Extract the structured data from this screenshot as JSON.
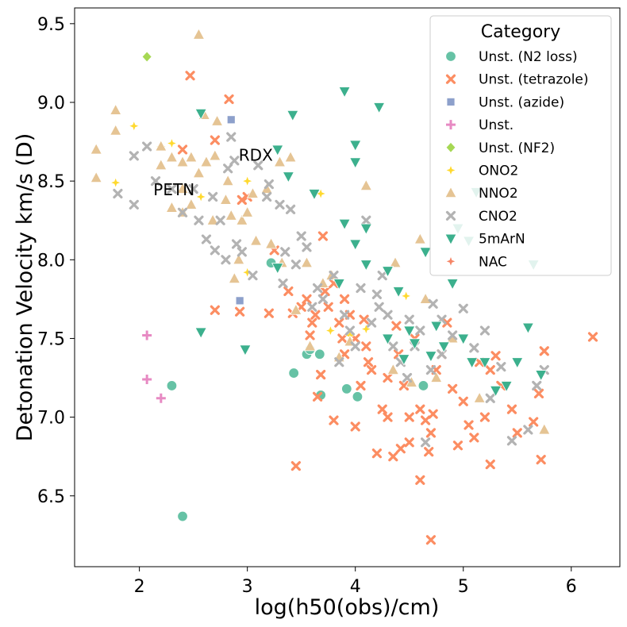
{
  "chart_data": {
    "type": "scatter",
    "title": "",
    "xlabel": "log(h50(obs)/cm)",
    "ylabel": "Detonation Velocity km/s (D)",
    "xlim": [
      1.4,
      6.45
    ],
    "ylim": [
      6.05,
      9.6
    ],
    "xticks": [
      "2",
      "3",
      "4",
      "5",
      "6"
    ],
    "xtick_values": [
      2,
      3,
      4,
      5,
      6
    ],
    "yticks": [
      "6.5",
      "7.0",
      "7.5",
      "8.0",
      "8.5",
      "9.0",
      "9.5"
    ],
    "ytick_values": [
      6.5,
      7.0,
      7.5,
      8.0,
      8.5,
      9.0,
      9.5
    ],
    "grid": false,
    "legend_title": "Category",
    "legend_position": "top-right",
    "annotations": [
      {
        "text": "RDX",
        "x": 2.92,
        "y": 8.63
      },
      {
        "text": "PETN",
        "x": 2.13,
        "y": 8.41
      }
    ],
    "series": [
      {
        "name": "Unst. (N2 loss)",
        "color": "#66c2a5",
        "marker": "circle",
        "points": [
          [
            2.3,
            7.2
          ],
          [
            2.4,
            6.37
          ],
          [
            3.22,
            7.98
          ],
          [
            3.43,
            7.28
          ],
          [
            3.55,
            7.4
          ],
          [
            3.58,
            7.43
          ],
          [
            3.67,
            7.4
          ],
          [
            3.68,
            7.14
          ],
          [
            3.92,
            7.18
          ],
          [
            4.02,
            7.13
          ],
          [
            4.63,
            7.2
          ]
        ]
      },
      {
        "name": "Unst. (tetrazole)",
        "color": "#fc8d62",
        "marker": "x",
        "points": [
          [
            2.47,
            9.17
          ],
          [
            2.83,
            9.02
          ],
          [
            2.4,
            8.7
          ],
          [
            2.7,
            8.76
          ],
          [
            2.95,
            8.38
          ],
          [
            3.0,
            8.4
          ],
          [
            3.25,
            8.06
          ],
          [
            3.38,
            7.8
          ],
          [
            3.45,
            6.69
          ],
          [
            3.42,
            7.66
          ],
          [
            3.5,
            7.7
          ],
          [
            3.55,
            7.75
          ],
          [
            3.6,
            7.6
          ],
          [
            3.63,
            7.65
          ],
          [
            3.68,
            7.27
          ],
          [
            3.72,
            7.8
          ],
          [
            3.75,
            7.7
          ],
          [
            3.8,
            7.85
          ],
          [
            3.85,
            7.6
          ],
          [
            3.88,
            7.5
          ],
          [
            3.9,
            7.4
          ],
          [
            3.95,
            7.65
          ],
          [
            4.0,
            7.5
          ],
          [
            4.05,
            7.2
          ],
          [
            4.1,
            7.45
          ],
          [
            4.15,
            7.3
          ],
          [
            4.2,
            6.77
          ],
          [
            4.25,
            7.05
          ],
          [
            4.3,
            7.25
          ],
          [
            4.35,
            6.75
          ],
          [
            4.4,
            7.4
          ],
          [
            4.45,
            7.2
          ],
          [
            4.5,
            7.0
          ],
          [
            4.55,
            7.5
          ],
          [
            4.6,
            7.05
          ],
          [
            4.65,
            6.98
          ],
          [
            4.7,
            6.9
          ],
          [
            4.7,
            6.22
          ],
          [
            4.75,
            7.3
          ],
          [
            4.8,
            7.4
          ],
          [
            4.85,
            7.6
          ],
          [
            4.9,
            7.18
          ],
          [
            4.95,
            6.82
          ],
          [
            5.05,
            6.95
          ],
          [
            5.1,
            6.87
          ],
          [
            5.15,
            7.35
          ],
          [
            5.2,
            7.0
          ],
          [
            5.25,
            6.7
          ],
          [
            5.3,
            7.39
          ],
          [
            5.35,
            7.2
          ],
          [
            5.45,
            7.05
          ],
          [
            5.5,
            6.9
          ],
          [
            5.65,
            6.97
          ],
          [
            5.72,
            6.73
          ],
          [
            5.75,
            7.42
          ],
          [
            6.2,
            7.51
          ],
          [
            2.7,
            7.68
          ],
          [
            2.93,
            7.67
          ],
          [
            3.2,
            7.66
          ],
          [
            3.65,
            7.13
          ],
          [
            3.7,
            8.15
          ],
          [
            3.9,
            7.75
          ],
          [
            4.0,
            6.94
          ],
          [
            4.08,
            7.62
          ],
          [
            4.3,
            7.0
          ],
          [
            4.42,
            6.8
          ],
          [
            4.5,
            6.84
          ],
          [
            4.6,
            6.6
          ],
          [
            4.68,
            6.78
          ],
          [
            4.72,
            7.02
          ],
          [
            5.0,
            7.1
          ],
          [
            5.25,
            7.3
          ],
          [
            5.7,
            7.15
          ],
          [
            3.58,
            7.52
          ],
          [
            3.8,
            6.98
          ],
          [
            4.12,
            7.35
          ],
          [
            4.38,
            7.58
          ]
        ]
      },
      {
        "name": "Unst. (azide)",
        "color": "#8da0cb",
        "marker": "square",
        "points": [
          [
            2.85,
            8.89
          ],
          [
            2.93,
            7.74
          ]
        ]
      },
      {
        "name": "Unst.",
        "color": "#e78ac3",
        "marker": "plus",
        "points": [
          [
            2.07,
            7.52
          ],
          [
            2.07,
            7.24
          ],
          [
            2.2,
            7.12
          ]
        ]
      },
      {
        "name": "Unst. (NF2)",
        "color": "#a6d854",
        "marker": "diamond",
        "points": [
          [
            2.07,
            9.29
          ]
        ]
      },
      {
        "name": "ONO2",
        "color": "#ffd92f",
        "marker": "star",
        "points": [
          [
            1.78,
            8.49
          ],
          [
            1.95,
            8.85
          ],
          [
            2.2,
            8.72
          ],
          [
            2.3,
            8.74
          ],
          [
            2.57,
            8.4
          ],
          [
            3.0,
            8.5
          ],
          [
            3.0,
            7.92
          ],
          [
            3.68,
            8.42
          ],
          [
            3.77,
            7.55
          ],
          [
            3.95,
            7.52
          ],
          [
            4.1,
            7.56
          ],
          [
            4.47,
            7.77
          ]
        ]
      },
      {
        "name": "NNO2",
        "color": "#e5c494",
        "marker": "triangle",
        "points": [
          [
            1.6,
            8.7
          ],
          [
            1.6,
            8.52
          ],
          [
            1.78,
            8.95
          ],
          [
            1.78,
            8.82
          ],
          [
            2.2,
            8.72
          ],
          [
            2.2,
            8.6
          ],
          [
            2.3,
            8.33
          ],
          [
            2.3,
            8.65
          ],
          [
            2.4,
            8.45
          ],
          [
            2.4,
            8.3
          ],
          [
            2.4,
            8.62
          ],
          [
            2.48,
            8.65
          ],
          [
            2.48,
            8.35
          ],
          [
            2.55,
            9.43
          ],
          [
            2.55,
            8.55
          ],
          [
            2.6,
            8.92
          ],
          [
            2.62,
            8.62
          ],
          [
            2.68,
            8.25
          ],
          [
            2.7,
            8.66
          ],
          [
            2.72,
            8.88
          ],
          [
            2.8,
            8.38
          ],
          [
            2.82,
            8.5
          ],
          [
            2.85,
            8.28
          ],
          [
            2.88,
            7.88
          ],
          [
            2.92,
            8.0
          ],
          [
            2.95,
            8.25
          ],
          [
            3.0,
            8.3
          ],
          [
            3.05,
            8.42
          ],
          [
            3.08,
            8.12
          ],
          [
            3.18,
            8.45
          ],
          [
            3.22,
            8.1
          ],
          [
            3.3,
            8.62
          ],
          [
            3.32,
            7.98
          ],
          [
            3.4,
            8.65
          ],
          [
            3.45,
            7.68
          ],
          [
            3.55,
            7.98
          ],
          [
            3.58,
            7.45
          ],
          [
            3.7,
            7.85
          ],
          [
            3.78,
            7.9
          ],
          [
            3.85,
            7.38
          ],
          [
            3.95,
            7.48
          ],
          [
            4.1,
            8.47
          ],
          [
            4.35,
            7.3
          ],
          [
            4.37,
            7.98
          ],
          [
            4.52,
            7.22
          ],
          [
            4.6,
            8.13
          ],
          [
            4.65,
            7.75
          ],
          [
            4.75,
            7.25
          ],
          [
            5.15,
            7.12
          ],
          [
            5.75,
            6.92
          ],
          [
            4.9,
            7.5
          ]
        ]
      },
      {
        "name": "CNO2",
        "color": "#b3b3b3",
        "marker": "x",
        "points": [
          [
            1.8,
            8.42
          ],
          [
            1.95,
            8.66
          ],
          [
            1.95,
            8.35
          ],
          [
            2.07,
            8.72
          ],
          [
            2.15,
            8.5
          ],
          [
            2.3,
            8.45
          ],
          [
            2.4,
            8.3
          ],
          [
            2.5,
            8.45
          ],
          [
            2.55,
            8.25
          ],
          [
            2.62,
            8.13
          ],
          [
            2.68,
            8.4
          ],
          [
            2.7,
            8.06
          ],
          [
            2.75,
            8.25
          ],
          [
            2.8,
            8.0
          ],
          [
            2.82,
            8.58
          ],
          [
            2.88,
            8.63
          ],
          [
            2.9,
            8.1
          ],
          [
            2.95,
            8.05
          ],
          [
            3.05,
            7.9
          ],
          [
            3.1,
            8.6
          ],
          [
            3.18,
            8.4
          ],
          [
            3.2,
            8.48
          ],
          [
            3.3,
            8.35
          ],
          [
            3.35,
            8.05
          ],
          [
            3.4,
            8.32
          ],
          [
            3.45,
            7.97
          ],
          [
            3.5,
            8.15
          ],
          [
            3.55,
            8.08
          ],
          [
            3.6,
            7.7
          ],
          [
            3.65,
            7.82
          ],
          [
            3.7,
            7.75
          ],
          [
            3.8,
            7.9
          ],
          [
            3.9,
            7.65
          ],
          [
            3.95,
            7.55
          ],
          [
            4.0,
            7.45
          ],
          [
            4.05,
            7.82
          ],
          [
            4.1,
            8.25
          ],
          [
            4.15,
            7.6
          ],
          [
            4.22,
            7.7
          ],
          [
            4.25,
            7.9
          ],
          [
            4.3,
            7.65
          ],
          [
            4.35,
            7.45
          ],
          [
            4.42,
            7.35
          ],
          [
            4.48,
            7.25
          ],
          [
            4.55,
            7.45
          ],
          [
            4.6,
            7.55
          ],
          [
            4.65,
            6.84
          ],
          [
            4.7,
            7.3
          ],
          [
            4.72,
            7.72
          ],
          [
            4.8,
            7.62
          ],
          [
            4.9,
            7.52
          ],
          [
            5.0,
            7.69
          ],
          [
            5.1,
            7.44
          ],
          [
            5.2,
            7.55
          ],
          [
            5.25,
            7.12
          ],
          [
            5.35,
            7.32
          ],
          [
            5.45,
            6.85
          ],
          [
            5.6,
            6.92
          ],
          [
            5.68,
            7.2
          ],
          [
            5.75,
            7.3
          ],
          [
            2.85,
            8.78
          ],
          [
            3.33,
            7.85
          ],
          [
            3.85,
            7.35
          ],
          [
            4.2,
            7.78
          ],
          [
            4.5,
            7.62
          ],
          [
            4.8,
            7.4
          ]
        ]
      },
      {
        "name": "5mArN",
        "color": "#3cb08d",
        "marker": "triangle-down",
        "points": [
          [
            2.57,
            8.93
          ],
          [
            2.57,
            7.54
          ],
          [
            2.98,
            7.43
          ],
          [
            3.28,
            8.7
          ],
          [
            3.38,
            8.53
          ],
          [
            3.42,
            8.92
          ],
          [
            3.62,
            8.42
          ],
          [
            3.85,
            7.85
          ],
          [
            3.9,
            9.07
          ],
          [
            3.9,
            8.23
          ],
          [
            4.0,
            8.73
          ],
          [
            4.0,
            8.62
          ],
          [
            4.0,
            8.1
          ],
          [
            4.1,
            8.2
          ],
          [
            4.1,
            7.97
          ],
          [
            4.22,
            8.97
          ],
          [
            4.3,
            7.93
          ],
          [
            4.4,
            7.8
          ],
          [
            4.45,
            7.37
          ],
          [
            4.5,
            7.55
          ],
          [
            4.55,
            7.47
          ],
          [
            4.65,
            8.05
          ],
          [
            4.7,
            7.39
          ],
          [
            4.75,
            7.58
          ],
          [
            4.82,
            7.45
          ],
          [
            4.9,
            7.85
          ],
          [
            4.95,
            8.2
          ],
          [
            5.0,
            7.5
          ],
          [
            5.05,
            8.12
          ],
          [
            5.08,
            7.35
          ],
          [
            5.12,
            8.43
          ],
          [
            5.2,
            7.35
          ],
          [
            5.3,
            7.17
          ],
          [
            5.4,
            7.2
          ],
          [
            5.5,
            7.35
          ],
          [
            5.6,
            7.57
          ],
          [
            5.65,
            7.97
          ],
          [
            5.72,
            7.27
          ],
          [
            4.3,
            7.5
          ],
          [
            3.28,
            7.95
          ]
        ]
      },
      {
        "name": "NAC",
        "color": "#f58566",
        "marker": "star",
        "points": []
      }
    ]
  }
}
